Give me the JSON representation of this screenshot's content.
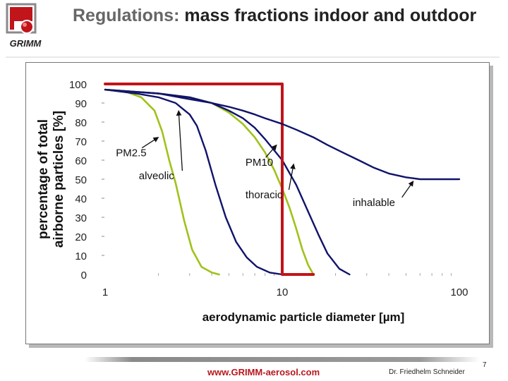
{
  "header": {
    "title_accent": "Regulations:",
    "title_rest": " mass fractions indoor and outdoor",
    "logo_text": "GRIMM"
  },
  "footer": {
    "url": "www.GRIMM-aerosol.com",
    "author": "Dr. Friedhelm Schneider",
    "page": "7"
  },
  "colors": {
    "pm10_steps": "#c0151a",
    "green_curves": "#9fc21b",
    "navy_curves": "#10136b",
    "arrows": "#111111",
    "logo_red": "#c0151a"
  },
  "chart_data": {
    "type": "line",
    "xscale": "log",
    "xlim": [
      1,
      100
    ],
    "ylim": [
      0,
      100
    ],
    "xticks": [
      "1",
      "10",
      "100"
    ],
    "yticks": [
      "0",
      "10",
      "20",
      "30",
      "40",
      "50",
      "60",
      "70",
      "80",
      "90",
      "100"
    ],
    "xlabel": "aerodynamic particle diameter [µm]",
    "ylabel_line1": "percentage of total",
    "ylabel_line2": "airborne particles [%]",
    "series": [
      {
        "color_role": "green_curves",
        "x": [
          1,
          1.3,
          1.6,
          1.9,
          2.1,
          2.3,
          2.5,
          2.8,
          3.1,
          3.5,
          4.0,
          4.4
        ],
        "y": [
          97,
          96,
          93,
          86,
          75,
          60,
          48,
          28,
          13,
          4,
          1,
          0
        ]
      },
      {
        "color_role": "navy_curves",
        "x": [
          1,
          1.5,
          2,
          2.5,
          3,
          3.3,
          3.7,
          4.2,
          4.8,
          5.5,
          6.3,
          7.2,
          8.5,
          10
        ],
        "y": [
          97,
          95,
          93,
          90,
          84,
          78,
          65,
          47,
          30,
          17,
          9,
          4,
          1,
          0
        ]
      },
      {
        "color_role": "green_curves",
        "x": [
          1,
          2,
          3,
          4,
          5,
          6,
          7,
          8,
          9,
          10,
          11,
          12,
          13,
          14,
          15
        ],
        "y": [
          97,
          95,
          93,
          90,
          85,
          79,
          72,
          64,
          55,
          45,
          35,
          24,
          13,
          5,
          0
        ]
      },
      {
        "color_role": "navy_curves",
        "x": [
          1,
          2,
          3,
          4,
          5,
          6,
          7,
          8,
          10,
          12,
          14,
          16,
          18,
          21,
          24
        ],
        "y": [
          97,
          95,
          93,
          90,
          86,
          82,
          77,
          71,
          60,
          47,
          33,
          21,
          11,
          3,
          0
        ]
      },
      {
        "color_role": "pm10_steps",
        "x": [
          1,
          10,
          10,
          15
        ],
        "y": [
          100,
          100,
          0,
          0
        ]
      },
      {
        "color_role": "navy_curves",
        "x": [
          1,
          2,
          3,
          4,
          5,
          6,
          7,
          8,
          10,
          12,
          15,
          18,
          22,
          27,
          33,
          40,
          50,
          60,
          70,
          85,
          100
        ],
        "y": [
          97,
          95,
          92,
          90,
          88,
          86,
          84,
          82,
          79,
          76,
          72,
          68,
          64,
          60,
          56,
          53,
          51,
          50,
          50,
          50,
          50
        ]
      }
    ],
    "annotations": [
      {
        "text": "PM2.5",
        "x": 1.15,
        "y": 62,
        "color_role": "green_curves",
        "arrow_to": [
          2.0,
          72
        ]
      },
      {
        "text": "alveolic",
        "x": 1.55,
        "y": 50,
        "color_role": "navy_curves",
        "arrow_to": [
          2.6,
          86
        ]
      },
      {
        "text": "PM10",
        "x": 6.2,
        "y": 57,
        "color_role": "green_curves",
        "arrow_to": [
          9.3,
          68
        ]
      },
      {
        "text": "thoracic",
        "x": 6.2,
        "y": 40,
        "color_role": "navy_curves",
        "arrow_to": [
          11.6,
          58
        ]
      },
      {
        "text": "inhalable",
        "x": 25,
        "y": 36,
        "color_role": "navy_curves",
        "arrow_to": [
          55,
          49
        ]
      }
    ]
  }
}
